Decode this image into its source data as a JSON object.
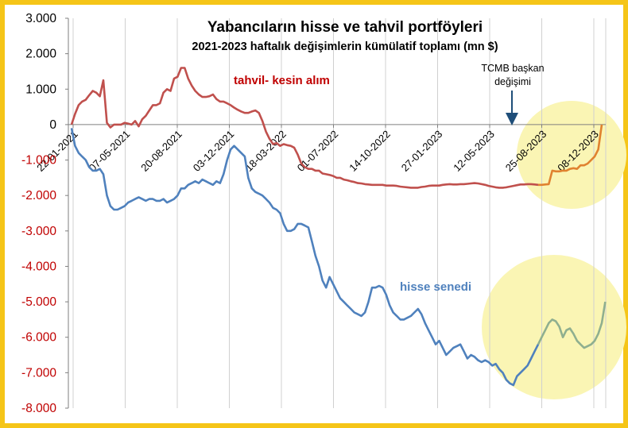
{
  "chart_data": {
    "type": "line",
    "title": "Yabancıların hisse ve tahvil portföyleri",
    "subtitle": "2021-2023 haftalık değişimlerin kümülatif toplamı (mn $)",
    "ylim": [
      -8000,
      3000
    ],
    "y_ticks": [
      3000,
      2000,
      1000,
      0,
      -1000,
      -2000,
      -3000,
      -4000,
      -5000,
      -6000,
      -7000,
      -8000
    ],
    "y_tick_labels": [
      "3.000",
      "2.000",
      "1.000",
      "0",
      "-1.000",
      "-2.000",
      "-3.000",
      "-4.000",
      "-5.000",
      "-6.000",
      "-7.000",
      "-8.000"
    ],
    "x_tick_labels": [
      "22-01-2021",
      "07-05-2021",
      "20-08-2021",
      "03-12-2021",
      "18-03-2022",
      "01-07-2022",
      "14-10-2022",
      "27-01-2023",
      "12-05-2023",
      "25-08-2023",
      "08-12-2023"
    ],
    "grid": "vertical",
    "highlight_after_index": 132,
    "series": [
      {
        "name": "tahvil- kesin alım",
        "color": "#C0504D",
        "highlight_color": "#E0822F",
        "values": [
          0,
          300,
          550,
          650,
          700,
          830,
          950,
          900,
          800,
          1250,
          50,
          -80,
          0,
          0,
          0,
          50,
          30,
          0,
          100,
          -50,
          150,
          250,
          400,
          550,
          550,
          600,
          900,
          1000,
          950,
          1300,
          1350,
          1600,
          1600,
          1300,
          1100,
          950,
          850,
          780,
          780,
          800,
          850,
          720,
          650,
          650,
          600,
          550,
          480,
          420,
          370,
          330,
          330,
          370,
          400,
          330,
          100,
          -200,
          -400,
          -550,
          -520,
          -600,
          -550,
          -580,
          -600,
          -650,
          -850,
          -1100,
          -1200,
          -1250,
          -1250,
          -1300,
          -1300,
          -1380,
          -1400,
          -1420,
          -1450,
          -1500,
          -1500,
          -1550,
          -1570,
          -1600,
          -1620,
          -1650,
          -1660,
          -1680,
          -1690,
          -1700,
          -1700,
          -1700,
          -1700,
          -1720,
          -1720,
          -1720,
          -1730,
          -1750,
          -1760,
          -1770,
          -1780,
          -1780,
          -1780,
          -1760,
          -1750,
          -1730,
          -1720,
          -1720,
          -1720,
          -1700,
          -1690,
          -1680,
          -1690,
          -1690,
          -1680,
          -1680,
          -1670,
          -1660,
          -1650,
          -1660,
          -1680,
          -1700,
          -1730,
          -1750,
          -1770,
          -1780,
          -1780,
          -1770,
          -1750,
          -1730,
          -1710,
          -1690,
          -1690,
          -1680,
          -1680,
          -1690,
          -1700,
          -1700,
          -1690,
          -1680,
          -1300,
          -1320,
          -1320,
          -1300,
          -1300,
          -1250,
          -1230,
          -1250,
          -1150,
          -1150,
          -1100,
          -1000,
          -900,
          -700,
          0
        ]
      },
      {
        "name": "hisse senedi",
        "color": "#4F81BD",
        "highlight_color": "#8FAF8F",
        "values": [
          -100,
          -600,
          -800,
          -900,
          -1000,
          -1200,
          -1300,
          -1300,
          -1250,
          -1400,
          -2000,
          -2300,
          -2400,
          -2400,
          -2350,
          -2300,
          -2200,
          -2150,
          -2100,
          -2050,
          -2100,
          -2150,
          -2100,
          -2100,
          -2150,
          -2150,
          -2100,
          -2200,
          -2150,
          -2100,
          -2000,
          -1800,
          -1800,
          -1700,
          -1650,
          -1600,
          -1650,
          -1550,
          -1600,
          -1650,
          -1700,
          -1600,
          -1650,
          -1400,
          -1000,
          -700,
          -600,
          -700,
          -800,
          -900,
          -1500,
          -1800,
          -1900,
          -1950,
          -2000,
          -2100,
          -2200,
          -2350,
          -2400,
          -2500,
          -2800,
          -3000,
          -3000,
          -2950,
          -2800,
          -2800,
          -2850,
          -2900,
          -3300,
          -3700,
          -4000,
          -4400,
          -4600,
          -4300,
          -4500,
          -4700,
          -4900,
          -5000,
          -5100,
          -5200,
          -5300,
          -5350,
          -5400,
          -5300,
          -5000,
          -4600,
          -4600,
          -4550,
          -4600,
          -4800,
          -5100,
          -5300,
          -5400,
          -5500,
          -5500,
          -5450,
          -5400,
          -5300,
          -5200,
          -5350,
          -5600,
          -5800,
          -6000,
          -6200,
          -6100,
          -6300,
          -6500,
          -6400,
          -6300,
          -6250,
          -6200,
          -6400,
          -6600,
          -6500,
          -6550,
          -6650,
          -6700,
          -6650,
          -6700,
          -6800,
          -6750,
          -6900,
          -7000,
          -7200,
          -7300,
          -7350,
          -7100,
          -7000,
          -6900,
          -6800,
          -6600,
          -6400,
          -6200,
          -6000,
          -5800,
          -5600,
          -5500,
          -5550,
          -5700,
          -6000,
          -5800,
          -5750,
          -5900,
          -6100,
          -6200,
          -6300,
          -6250,
          -6200,
          -6100,
          -5900,
          -5600,
          -5000
        ]
      }
    ],
    "annotations": [
      {
        "text": "tahvil- kesin alım",
        "color": "#C00000"
      },
      {
        "text": "hisse senedi",
        "color": "#4F81BD"
      },
      {
        "text_line1": "TCMB  başkan",
        "text_line2": "değişimi",
        "color": "#000000"
      }
    ]
  }
}
